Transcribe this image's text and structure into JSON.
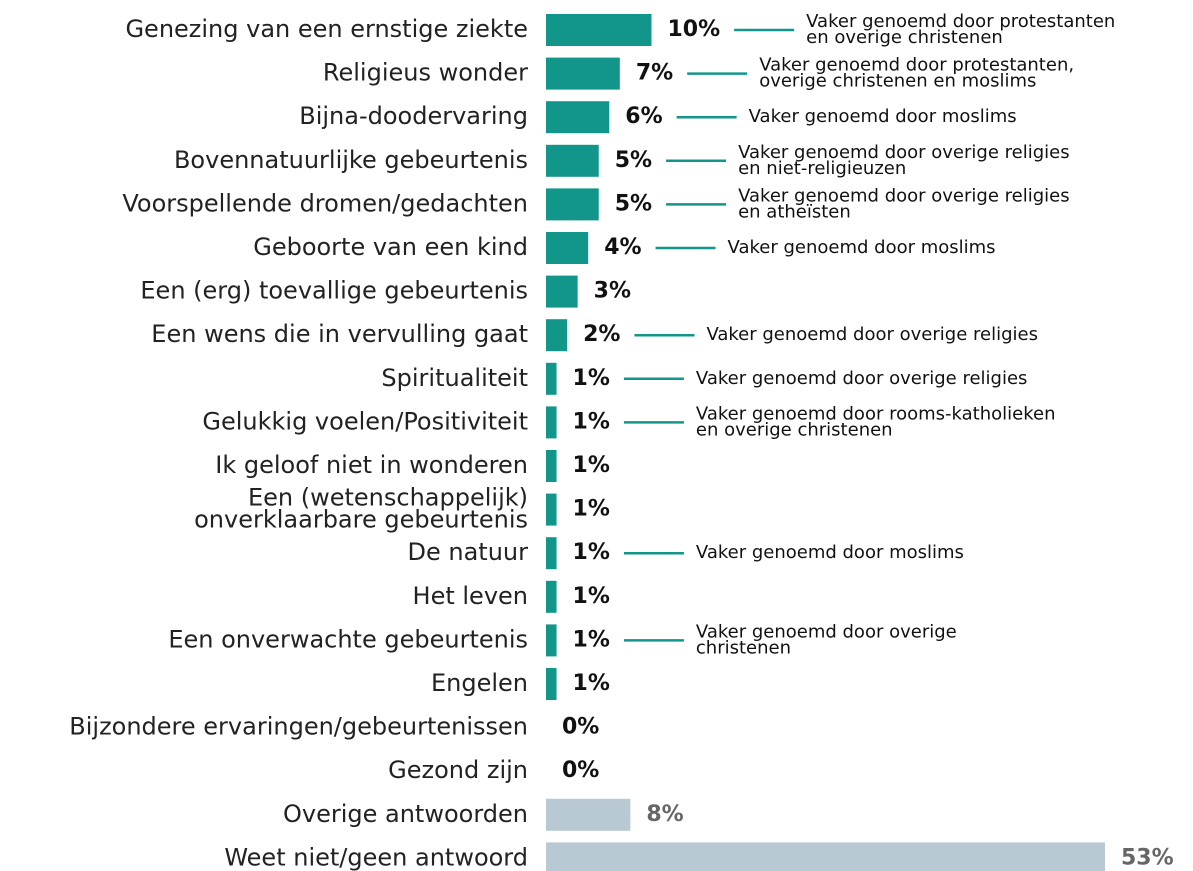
{
  "chart_data": {
    "type": "bar",
    "orientation": "horizontal",
    "categories": [
      "Genezing van een ernstige ziekte",
      "Religieus wonder",
      "Bijna-doodervaring",
      "Bovennatuurlijke gebeurtenis",
      "Voorspellende dromen/gedachten",
      "Geboorte van een kind",
      "Een (erg) toevallige gebeurtenis",
      "Een wens die in vervulling gaat",
      "Spiritualiteit",
      "Gelukkig voelen/Positiviteit",
      "Ik geloof niet in wonderen",
      [
        "Een (wetenschappelijk)",
        "onverklaarbare gebeurtenis"
      ],
      "De natuur",
      "Het leven",
      "Een onverwachte gebeurtenis",
      "Engelen",
      "Bijzondere ervaringen/gebeurtenissen",
      "Gezond zijn",
      "Overige antwoorden",
      "Weet niet/geen antwoord"
    ],
    "values": [
      10,
      7,
      6,
      5,
      5,
      4,
      3,
      2,
      1,
      1,
      1,
      1,
      1,
      1,
      1,
      1,
      0,
      0,
      8,
      53
    ],
    "value_labels": [
      "10%",
      "7%",
      "6%",
      "5%",
      "5%",
      "4%",
      "3%",
      "2%",
      "1%",
      "1%",
      "1%",
      "1%",
      "1%",
      "1%",
      "1%",
      "1%",
      "0%",
      "0%",
      "8%",
      "53%"
    ],
    "colors": [
      "#13968a",
      "#13968a",
      "#13968a",
      "#13968a",
      "#13968a",
      "#13968a",
      "#13968a",
      "#13968a",
      "#13968a",
      "#13968a",
      "#13968a",
      "#13968a",
      "#13968a",
      "#13968a",
      "#13968a",
      "#13968a",
      "#13968a",
      "#13968a",
      "#b8c9d4",
      "#b8c9d4"
    ],
    "notes": [
      [
        "Vaker genoemd door protestanten",
        "en overige christenen"
      ],
      [
        "Vaker genoemd door protestanten,",
        "overige christenen en moslims"
      ],
      [
        "Vaker genoemd door moslims"
      ],
      [
        "Vaker genoemd door overige religies",
        "en niet-religieuzen"
      ],
      [
        "Vaker genoemd door overige religies",
        "en atheïsten"
      ],
      [
        "Vaker genoemd door moslims"
      ],
      null,
      [
        "Vaker genoemd door overige religies"
      ],
      [
        "Vaker genoemd door overige religies"
      ],
      [
        "Vaker genoemd door rooms-katholieken",
        "en overige christenen"
      ],
      null,
      null,
      [
        "Vaker genoemd door moslims"
      ],
      null,
      [
        "Vaker genoemd door overige",
        "christenen"
      ],
      null,
      null,
      null,
      null,
      null
    ],
    "note_color": "#13968a",
    "xlim": [
      0,
      53
    ]
  }
}
